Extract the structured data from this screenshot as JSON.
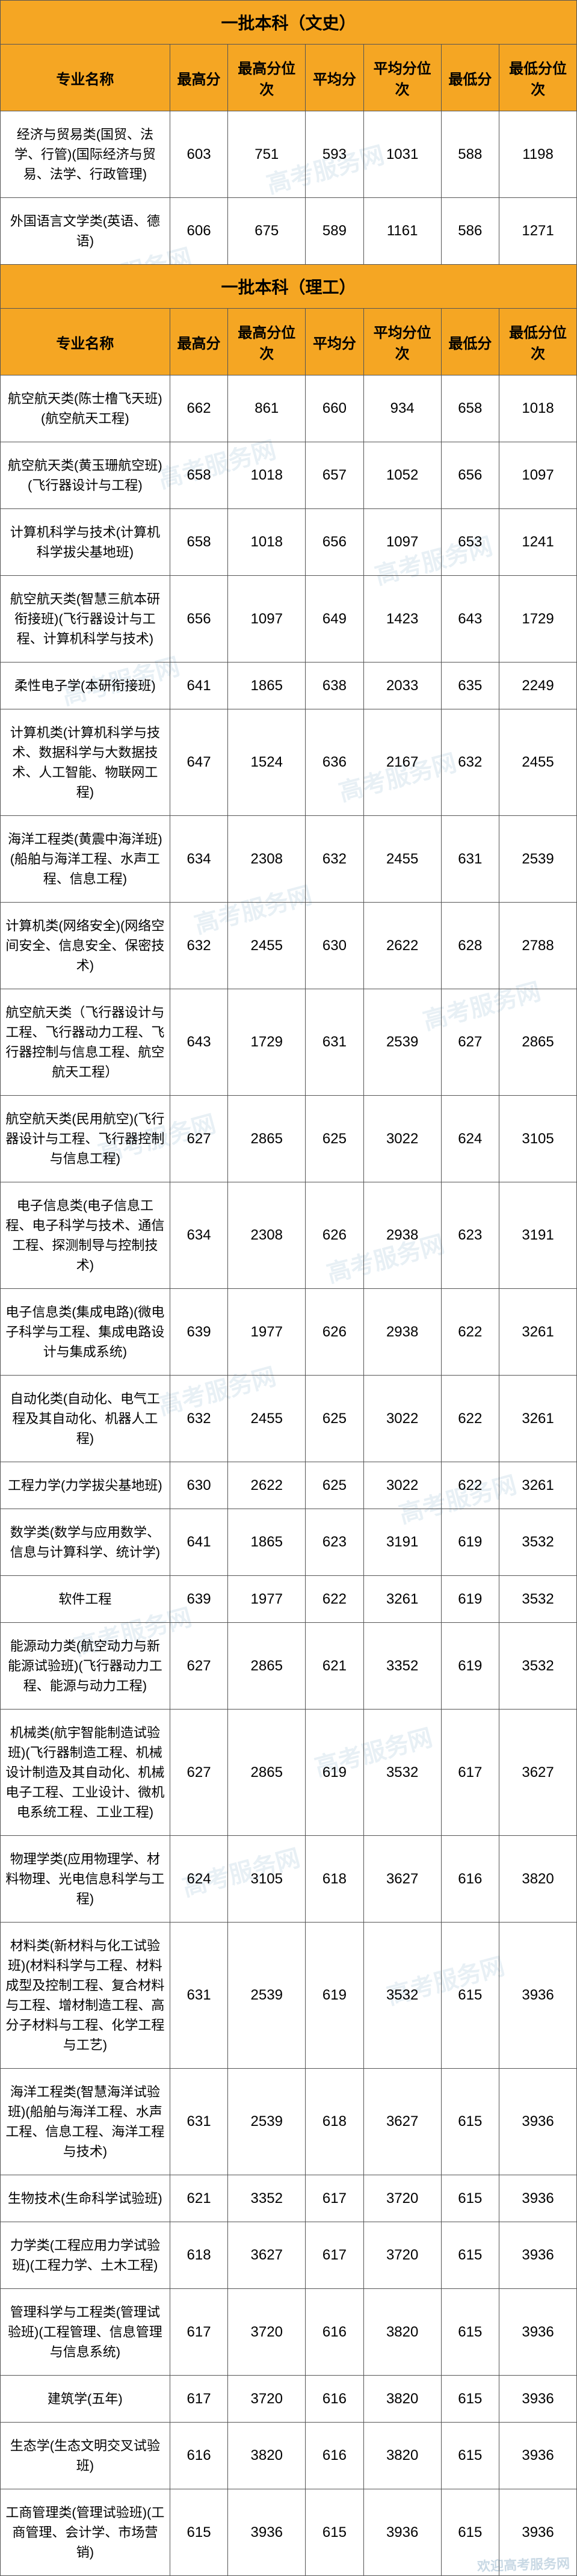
{
  "watermark_text": "高考服务网",
  "footer_text": "欢迎高考服务网",
  "colors": {
    "header_bg": "#f5a623",
    "border": "#555555",
    "text": "#000000",
    "watermark": "rgba(130,170,200,0.18)"
  },
  "columns": [
    "专业名称",
    "最高分",
    "最高分位次",
    "平均分",
    "平均分位次",
    "最低分",
    "最低分位次"
  ],
  "sections": [
    {
      "title": "一批本科（文史）",
      "rows": [
        {
          "major": "经济与贸易类(国贸、法学、行管)(国际经济与贸易、法学、行政管理)",
          "max": 603,
          "max_rank": 751,
          "avg": 593,
          "avg_rank": 1031,
          "min": 588,
          "min_rank": 1198
        },
        {
          "major": "外国语言文学类(英语、德语)",
          "max": 606,
          "max_rank": 675,
          "avg": 589,
          "avg_rank": 1161,
          "min": 586,
          "min_rank": 1271
        }
      ]
    },
    {
      "title": "一批本科（理工）",
      "rows": [
        {
          "major": "航空航天类(陈士橹飞天班)(航空航天工程)",
          "max": 662,
          "max_rank": 861,
          "avg": 660,
          "avg_rank": 934,
          "min": 658,
          "min_rank": 1018
        },
        {
          "major": "航空航天类(黄玉珊航空班)(飞行器设计与工程)",
          "max": 658,
          "max_rank": 1018,
          "avg": 657,
          "avg_rank": 1052,
          "min": 656,
          "min_rank": 1097
        },
        {
          "major": "计算机科学与技术(计算机科学拔尖基地班)",
          "max": 658,
          "max_rank": 1018,
          "avg": 656,
          "avg_rank": 1097,
          "min": 653,
          "min_rank": 1241
        },
        {
          "major": "航空航天类(智慧三航本研衔接班)(飞行器设计与工程、计算机科学与技术)",
          "max": 656,
          "max_rank": 1097,
          "avg": 649,
          "avg_rank": 1423,
          "min": 643,
          "min_rank": 1729
        },
        {
          "major": "柔性电子学(本研衔接班)",
          "max": 641,
          "max_rank": 1865,
          "avg": 638,
          "avg_rank": 2033,
          "min": 635,
          "min_rank": 2249
        },
        {
          "major": "计算机类(计算机科学与技术、数据科学与大数据技术、人工智能、物联网工程)",
          "max": 647,
          "max_rank": 1524,
          "avg": 636,
          "avg_rank": 2167,
          "min": 632,
          "min_rank": 2455
        },
        {
          "major": "海洋工程类(黄震中海洋班)(船舶与海洋工程、水声工程、信息工程)",
          "max": 634,
          "max_rank": 2308,
          "avg": 632,
          "avg_rank": 2455,
          "min": 631,
          "min_rank": 2539
        },
        {
          "major": "计算机类(网络安全)(网络空间安全、信息安全、保密技术)",
          "max": 632,
          "max_rank": 2455,
          "avg": 630,
          "avg_rank": 2622,
          "min": 628,
          "min_rank": 2788
        },
        {
          "major": "航空航天类（飞行器设计与工程、飞行器动力工程、飞行器控制与信息工程、航空航天工程）",
          "max": 643,
          "max_rank": 1729,
          "avg": 631,
          "avg_rank": 2539,
          "min": 627,
          "min_rank": 2865
        },
        {
          "major": "航空航天类(民用航空)(飞行器设计与工程、飞行器控制与信息工程)",
          "max": 627,
          "max_rank": 2865,
          "avg": 625,
          "avg_rank": 3022,
          "min": 624,
          "min_rank": 3105
        },
        {
          "major": "电子信息类(电子信息工程、电子科学与技术、通信工程、探测制导与控制技术)",
          "max": 634,
          "max_rank": 2308,
          "avg": 626,
          "avg_rank": 2938,
          "min": 623,
          "min_rank": 3191
        },
        {
          "major": "电子信息类(集成电路)(微电子科学与工程、集成电路设计与集成系统)",
          "max": 639,
          "max_rank": 1977,
          "avg": 626,
          "avg_rank": 2938,
          "min": 622,
          "min_rank": 3261
        },
        {
          "major": "自动化类(自动化、电气工程及其自动化、机器人工程)",
          "max": 632,
          "max_rank": 2455,
          "avg": 625,
          "avg_rank": 3022,
          "min": 622,
          "min_rank": 3261
        },
        {
          "major": "工程力学(力学拔尖基地班)",
          "max": 630,
          "max_rank": 2622,
          "avg": 625,
          "avg_rank": 3022,
          "min": 622,
          "min_rank": 3261
        },
        {
          "major": "数学类(数学与应用数学、信息与计算科学、统计学)",
          "max": 641,
          "max_rank": 1865,
          "avg": 623,
          "avg_rank": 3191,
          "min": 619,
          "min_rank": 3532
        },
        {
          "major": "软件工程",
          "max": 639,
          "max_rank": 1977,
          "avg": 622,
          "avg_rank": 3261,
          "min": 619,
          "min_rank": 3532
        },
        {
          "major": "能源动力类(航空动力与新能源试验班)(飞行器动力工程、能源与动力工程)",
          "max": 627,
          "max_rank": 2865,
          "avg": 621,
          "avg_rank": 3352,
          "min": 619,
          "min_rank": 3532
        },
        {
          "major": "机械类(航宇智能制造试验班)(飞行器制造工程、机械设计制造及其自动化、机械电子工程、工业设计、微机电系统工程、工业工程)",
          "max": 627,
          "max_rank": 2865,
          "avg": 619,
          "avg_rank": 3532,
          "min": 617,
          "min_rank": 3627
        },
        {
          "major": "物理学类(应用物理学、材料物理、光电信息科学与工程)",
          "max": 624,
          "max_rank": 3105,
          "avg": 618,
          "avg_rank": 3627,
          "min": 616,
          "min_rank": 3820
        },
        {
          "major": "材料类(新材料与化工试验班)(材料科学与工程、材料成型及控制工程、复合材料与工程、增材制造工程、高分子材料与工程、化学工程与工艺)",
          "max": 631,
          "max_rank": 2539,
          "avg": 619,
          "avg_rank": 3532,
          "min": 615,
          "min_rank": 3936
        },
        {
          "major": "海洋工程类(智慧海洋试验班)(船舶与海洋工程、水声工程、信息工程、海洋工程与技术)",
          "max": 631,
          "max_rank": 2539,
          "avg": 618,
          "avg_rank": 3627,
          "min": 615,
          "min_rank": 3936
        },
        {
          "major": "生物技术(生命科学试验班)",
          "max": 621,
          "max_rank": 3352,
          "avg": 617,
          "avg_rank": 3720,
          "min": 615,
          "min_rank": 3936
        },
        {
          "major": "力学类(工程应用力学试验班)(工程力学、土木工程)",
          "max": 618,
          "max_rank": 3627,
          "avg": 617,
          "avg_rank": 3720,
          "min": 615,
          "min_rank": 3936
        },
        {
          "major": "管理科学与工程类(管理试验班)(工程管理、信息管理与信息系统)",
          "max": 617,
          "max_rank": 3720,
          "avg": 616,
          "avg_rank": 3820,
          "min": 615,
          "min_rank": 3936
        },
        {
          "major": "建筑学(五年)",
          "max": 617,
          "max_rank": 3720,
          "avg": 616,
          "avg_rank": 3820,
          "min": 615,
          "min_rank": 3936
        },
        {
          "major": "生态学(生态文明交叉试验班)",
          "max": 616,
          "max_rank": 3820,
          "avg": 616,
          "avg_rank": 3820,
          "min": 615,
          "min_rank": 3936
        },
        {
          "major": "工商管理类(管理试验班)(工商管理、会计学、市场营销)",
          "max": 615,
          "max_rank": 3936,
          "avg": 615,
          "avg_rank": 3936,
          "min": 615,
          "min_rank": 3936
        }
      ]
    }
  ]
}
